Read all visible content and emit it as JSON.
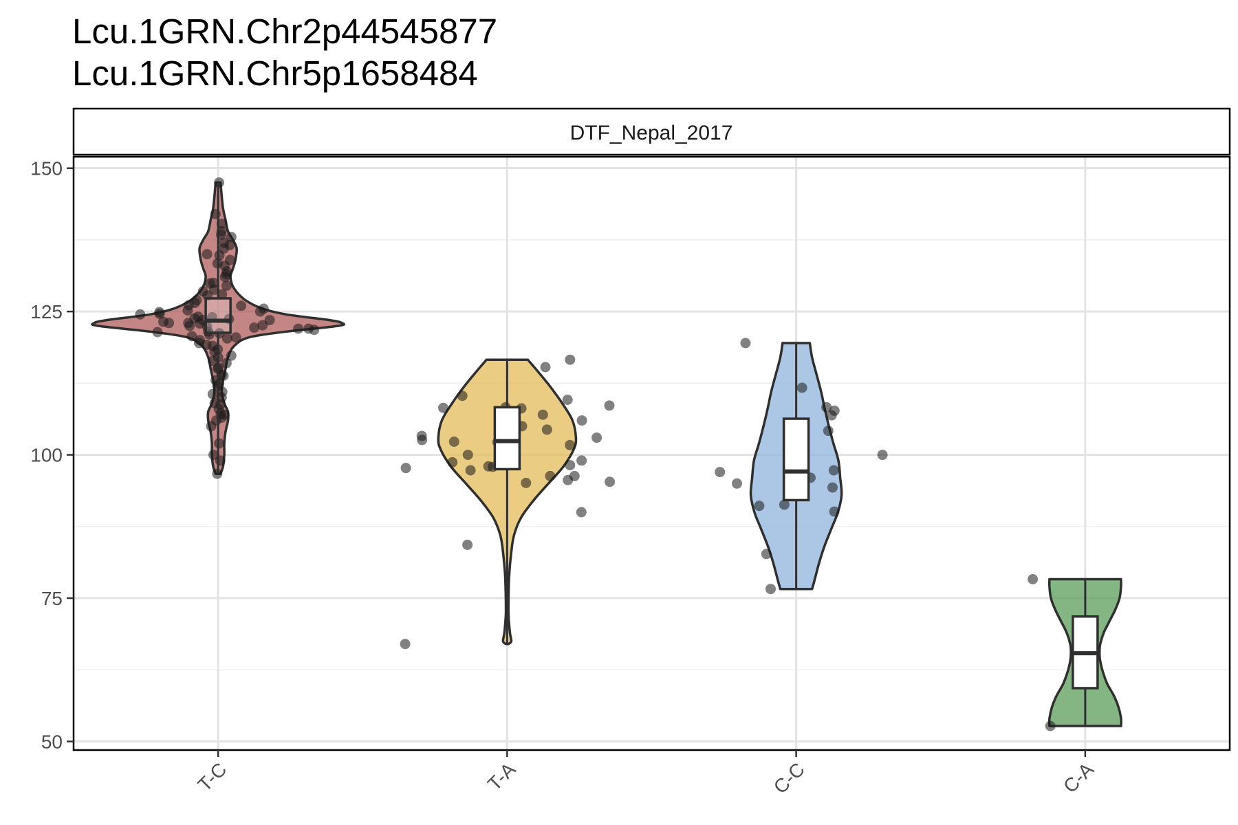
{
  "title_lines": [
    "Lcu.1GRN.Chr2p44545877",
    "Lcu.1GRN.Chr5p1658484"
  ],
  "chart_data": {
    "type": "violin",
    "facet_label": "DTF_Nepal_2017",
    "categories": [
      "T-C",
      "T-A",
      "C-C",
      "C-A"
    ],
    "y_ticks": [
      50,
      75,
      100,
      125,
      150
    ],
    "ylim": [
      48.5,
      152
    ],
    "grid": true,
    "legend": "none",
    "colors": {
      "T-C": "#b05c5c",
      "T-A": "#e3bb5a",
      "C-C": "#8fb4dc",
      "C-A": "#5b9e5b"
    },
    "series": [
      {
        "category": "T-C",
        "min": 96.7,
        "q1": 121.3,
        "median": 123.4,
        "q3": 127.3,
        "max": 147.5,
        "points": [
          147.5,
          142,
          139,
          138,
          137,
          136,
          135,
          134,
          133,
          132,
          131,
          130,
          129.5,
          128.5,
          128,
          127,
          126.5,
          126,
          125.5,
          125,
          124.5,
          124,
          123.5,
          123,
          123,
          122.5,
          122,
          122,
          121.5,
          121,
          120.5,
          120,
          119.5,
          119,
          118,
          117,
          116,
          115,
          114,
          113,
          112,
          111,
          110,
          109,
          108,
          107,
          106.5,
          105,
          102,
          100,
          99,
          96.7,
          122.6,
          123.2,
          123.8,
          124.1,
          122.9,
          121.8,
          123.5,
          124.6,
          125.2,
          126.1,
          122.2,
          121.4,
          120.7,
          127.8,
          128.8,
          129.9,
          131.5,
          133.4,
          134.8,
          136.6,
          138.4,
          140.3,
          124.9,
          123.7,
          122.4,
          121.2,
          120.3,
          119.2,
          118.4,
          117.3,
          116.4,
          115.2,
          113.8,
          112.4,
          110.6,
          108.8,
          107.2,
          106
        ]
      },
      {
        "category": "T-A",
        "min": 67,
        "q1": 97.5,
        "median": 102.4,
        "q3": 108.3,
        "max": 116.6,
        "points": [
          116.6,
          115.3,
          110.3,
          109.6,
          108.6,
          108.3,
          108.2,
          108.1,
          107,
          106,
          105,
          104.4,
          103.3,
          103,
          102.6,
          102.3,
          102.2,
          101.7,
          100,
          99,
          98.7,
          98.2,
          98,
          97.9,
          97.7,
          97.3,
          96.3,
          96.3,
          95.6,
          95.3,
          95.1,
          90,
          84.3,
          67
        ]
      },
      {
        "category": "C-C",
        "min": 76.6,
        "q1": 92.1,
        "median": 97.1,
        "q3": 106.3,
        "max": 119.5,
        "points": [
          119.5,
          111.7,
          108.3,
          107.7,
          106.9,
          104.4,
          104.2,
          100,
          97.3,
          97,
          96,
          95,
          94.3,
          91.3,
          91.1,
          90.1,
          82.7,
          76.6
        ]
      },
      {
        "category": "C-A",
        "min": 52.7,
        "q1": 59.3,
        "median": 65.4,
        "q3": 71.8,
        "max": 78.3,
        "points": [
          78.3,
          52.7
        ]
      }
    ]
  }
}
